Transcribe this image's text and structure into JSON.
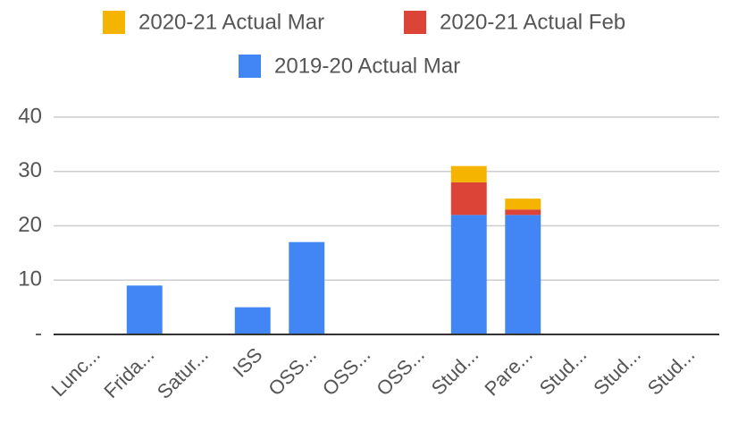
{
  "chart_data": {
    "type": "bar",
    "stacked": true,
    "legend": "top",
    "categories": [
      "Lunc...",
      "Frida...",
      "Satur...",
      "ISS",
      "OSS...",
      "OSS...",
      "OSS...",
      "Stud...",
      "Pare...",
      "Stud...",
      "Stud...",
      "Stud..."
    ],
    "series": [
      {
        "name": "2019-20 Actual Mar",
        "color": "#4285f4",
        "values": [
          0,
          9,
          0,
          5,
          17,
          0,
          0,
          22,
          22,
          0,
          0,
          0
        ]
      },
      {
        "name": "2020-21 Actual Feb",
        "color": "#db4437",
        "values": [
          0,
          0,
          0,
          0,
          0,
          0,
          0,
          6,
          1,
          0,
          0,
          0
        ]
      },
      {
        "name": "2020-21 Actual Mar",
        "color": "#f4b400",
        "values": [
          0,
          0,
          0,
          0,
          0,
          0,
          0,
          3,
          2,
          0,
          0,
          0
        ]
      }
    ],
    "ylim": [
      0,
      40
    ],
    "yticks": [
      {
        "value": 0,
        "label": "-"
      },
      10,
      20,
      30,
      40
    ],
    "grid": true
  }
}
